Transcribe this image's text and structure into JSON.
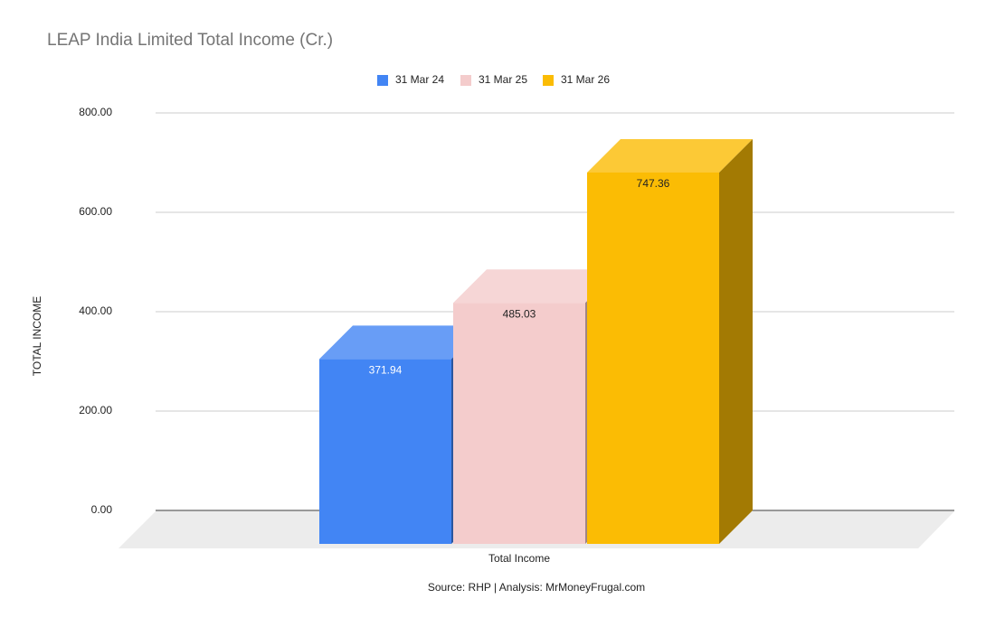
{
  "chart_data": {
    "type": "bar3d",
    "title": "LEAP India Limited Total Income (Cr.)",
    "categories": [
      "Total Income"
    ],
    "series": [
      {
        "name": "31 Mar 24",
        "color": "#4285f4",
        "values": [
          371.94
        ]
      },
      {
        "name": "31 Mar 25",
        "color": "#f4cccc",
        "values": [
          485.03
        ]
      },
      {
        "name": "31 Mar 26",
        "color": "#fbbc04",
        "values": [
          747.36
        ]
      }
    ],
    "y_label": "TOTAL INCOME",
    "ylim": [
      0,
      800
    ],
    "yticks": [
      {
        "value": 0,
        "label": "0.00"
      },
      {
        "value": 200,
        "label": "200.00"
      },
      {
        "value": 400,
        "label": "400.00"
      },
      {
        "value": 600,
        "label": "600.00"
      },
      {
        "value": 800,
        "label": "800.00"
      }
    ],
    "grid": true,
    "legend": "top",
    "source": "Source: RHP | Analysis: MrMoneyFrugal.com"
  }
}
